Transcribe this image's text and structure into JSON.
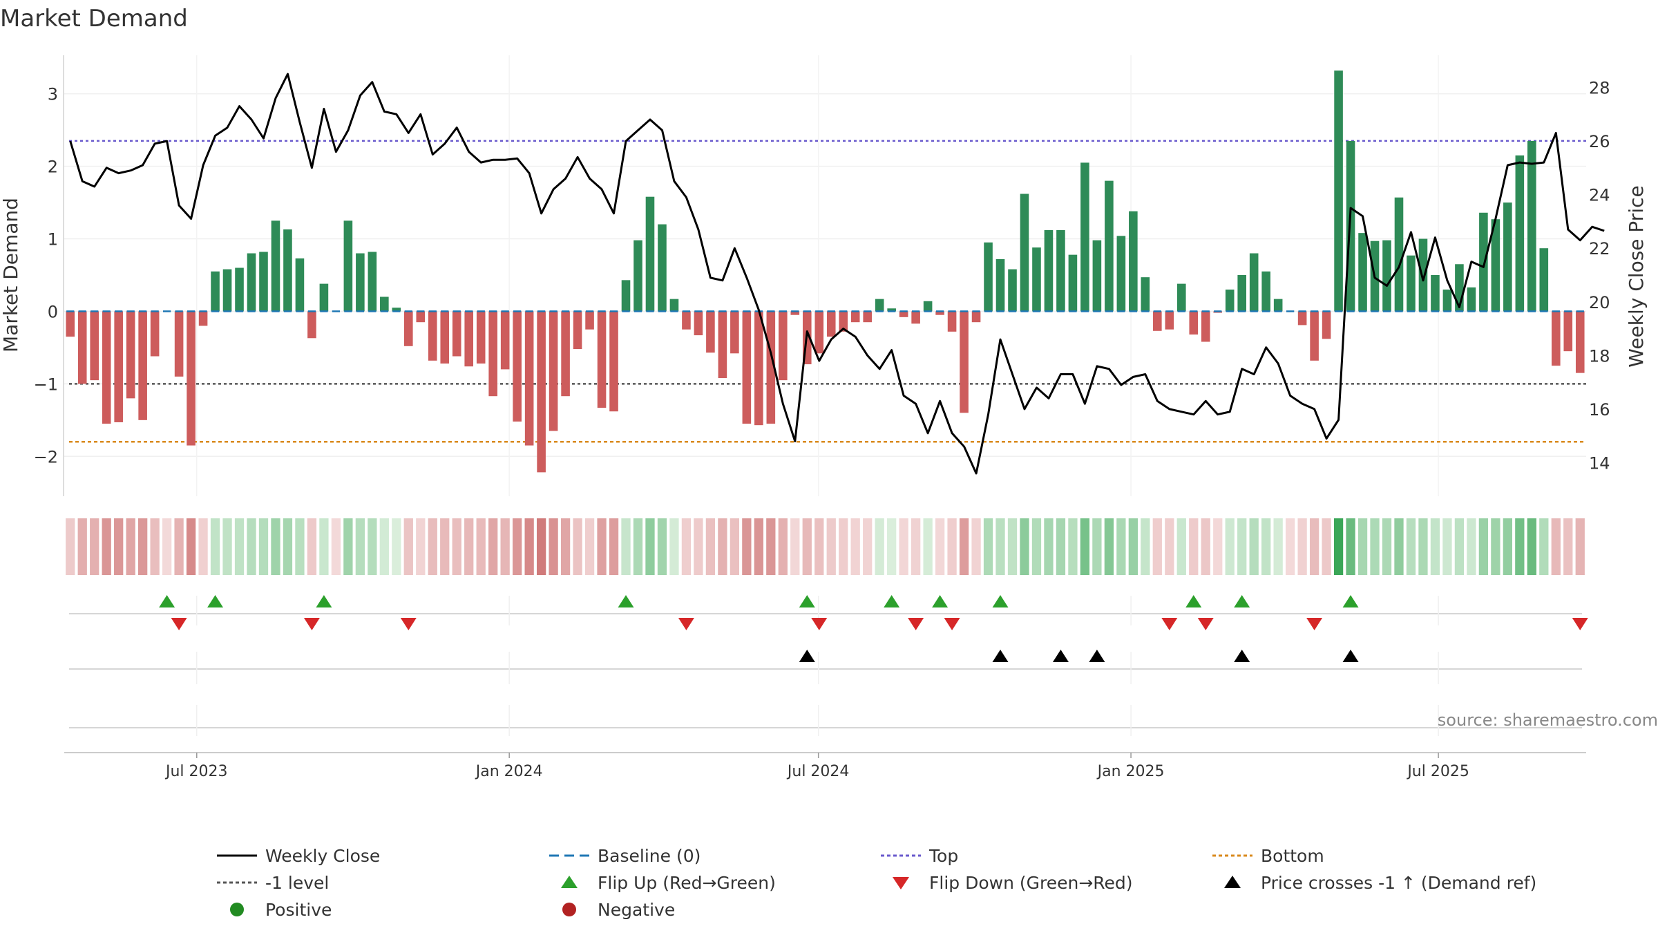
{
  "chart_data": {
    "type": "bar",
    "title": "Market Demand",
    "ylabel_left": "Market Demand",
    "ylabel_right": "Weekly Close Price",
    "ylim_left": [
      -2.55,
      3.55
    ],
    "ylim_right": [
      12.75,
      29.25
    ],
    "yticks_left": [
      3,
      2,
      1,
      0,
      -1,
      -2
    ],
    "yticks_left_labels": [
      "3",
      "2",
      "1",
      "0",
      "−1",
      "−2"
    ],
    "yticks_right": [
      28,
      26,
      24,
      22,
      20,
      18,
      16,
      14
    ],
    "x_start": "2023-04-14",
    "x_end": "2025-09-26",
    "x_ticks": [
      {
        "date": "2023-07-01",
        "label": "Jul 2023"
      },
      {
        "date": "2024-01-01",
        "label": "Jan 2024"
      },
      {
        "date": "2024-07-01",
        "label": "Jul 2024"
      },
      {
        "date": "2025-01-01",
        "label": "Jan 2025"
      },
      {
        "date": "2025-07-01",
        "label": "Jul 2025"
      }
    ],
    "reference_lines": {
      "top": 2.35,
      "minus_one": -1.0,
      "bottom": -1.8,
      "baseline": 0
    },
    "demand": [
      -0.35,
      -1.0,
      -0.95,
      -1.55,
      -1.53,
      -1.2,
      -1.5,
      -0.62,
      0,
      -0.9,
      -1.85,
      -0.2,
      0.55,
      0.58,
      0.6,
      0.8,
      0.82,
      1.25,
      1.13,
      0.73,
      -0.37,
      0.38,
      0,
      1.25,
      0.8,
      0.82,
      0.2,
      0.05,
      -0.48,
      -0.15,
      -0.68,
      -0.72,
      -0.62,
      -0.76,
      -0.72,
      -1.17,
      -0.8,
      -1.52,
      -1.85,
      -2.22,
      -1.65,
      -1.17,
      -0.52,
      -0.25,
      -1.33,
      -1.38,
      0.43,
      0.98,
      1.58,
      1.2,
      0.17,
      -0.25,
      -0.33,
      -0.57,
      -0.92,
      -0.58,
      -1.55,
      -1.57,
      -1.55,
      -0.95,
      -0.05,
      -0.73,
      -0.58,
      -0.35,
      -0.28,
      -0.15,
      -0.15,
      0.17,
      0.04,
      -0.08,
      -0.17,
      0.14,
      -0.05,
      -0.28,
      -1.4,
      -0.15,
      0.95,
      0.72,
      0.58,
      1.62,
      0.88,
      1.12,
      1.12,
      0.78,
      2.05,
      0.98,
      1.8,
      1.04,
      1.38,
      0.47,
      -0.27,
      -0.25,
      0.38,
      -0.32,
      -0.42,
      -0.02,
      0.3,
      0.5,
      0.8,
      0.55,
      0.17,
      0,
      -0.19,
      -0.68,
      -0.38,
      3.32,
      2.35,
      1.08,
      0.97,
      0.98,
      1.57,
      0.77,
      1.0,
      0.5,
      0.3,
      0.65,
      0.33,
      1.36,
      1.27,
      1.5,
      2.15,
      2.35,
      0.87,
      -0.75,
      -0.55,
      -0.85
    ],
    "price": [
      26.0,
      24.5,
      24.3,
      25.0,
      24.8,
      24.9,
      25.1,
      25.9,
      26.0,
      23.6,
      23.1,
      25.1,
      26.2,
      26.5,
      27.3,
      26.8,
      26.1,
      27.6,
      28.5,
      26.7,
      25.0,
      27.2,
      25.6,
      26.4,
      27.7,
      28.2,
      27.1,
      27.0,
      26.3,
      27.0,
      25.5,
      25.9,
      26.5,
      25.6,
      25.2,
      25.3,
      25.3,
      25.35,
      24.8,
      23.3,
      24.2,
      24.6,
      25.4,
      24.6,
      24.2,
      23.3,
      26.0,
      26.4,
      26.8,
      26.4,
      24.5,
      23.9,
      22.7,
      20.9,
      20.8,
      22.0,
      20.9,
      19.7,
      18.1,
      16.2,
      14.8,
      18.9,
      17.8,
      18.6,
      19.0,
      18.7,
      18.0,
      17.5,
      18.2,
      16.5,
      16.2,
      15.1,
      16.3,
      15.1,
      14.6,
      13.6,
      15.8,
      18.6,
      17.3,
      16.0,
      16.8,
      16.4,
      17.3,
      17.3,
      16.2,
      17.6,
      17.5,
      16.9,
      17.2,
      17.3,
      16.3,
      16.0,
      15.9,
      15.8,
      16.3,
      15.8,
      15.9,
      17.5,
      17.3,
      18.3,
      17.7,
      16.5,
      16.2,
      16.0,
      14.9,
      15.6,
      23.5,
      23.2,
      20.9,
      20.6,
      21.3,
      22.6,
      20.8,
      22.4,
      20.8,
      19.8,
      21.5,
      21.3,
      23.1,
      25.1,
      25.2,
      25.15,
      25.2,
      26.3,
      22.7,
      22.3,
      22.8,
      22.65
    ],
    "flip_up_index": [
      8,
      12,
      21,
      46,
      61,
      68,
      72,
      77,
      93,
      97,
      106
    ],
    "flip_down_index": [
      9,
      20,
      28,
      51,
      62,
      70,
      73,
      91,
      94,
      103,
      125
    ],
    "price_cross_index": [
      61,
      77,
      82,
      85,
      97,
      106
    ],
    "legend": [
      {
        "label": "Weekly Close",
        "kind": "line-solid",
        "color": "#000000"
      },
      {
        "label": "Baseline (0)",
        "kind": "line-dash",
        "color": "#1f77b4"
      },
      {
        "label": "Top",
        "kind": "line-dot",
        "color": "#6a5acd"
      },
      {
        "label": "Bottom",
        "kind": "line-dot",
        "color": "#d98a1c"
      },
      {
        "label": "-1 level",
        "kind": "line-dot",
        "color": "#555555"
      },
      {
        "label": "Flip Up (Red→Green)",
        "kind": "triangle-up",
        "color": "#2ca02c"
      },
      {
        "label": "Flip Down (Green→Red)",
        "kind": "triangle-down",
        "color": "#d62728"
      },
      {
        "label": "Price crosses -1 ↑ (Demand ref)",
        "kind": "triangle-up",
        "color": "#000000"
      },
      {
        "label": "Positive",
        "kind": "circle",
        "color": "#228b22"
      },
      {
        "label": "Negative",
        "kind": "circle",
        "color": "#b22222"
      }
    ],
    "source": "source: sharemaestro.com"
  },
  "colors": {
    "positive_bar": "#2e8b57",
    "negative_bar": "#cd5c5c",
    "price_line": "#000000",
    "baseline": "#1f77b4",
    "top_line": "#6a5acd",
    "bottom_line": "#d98a1c",
    "minus_one_line": "#555555"
  }
}
